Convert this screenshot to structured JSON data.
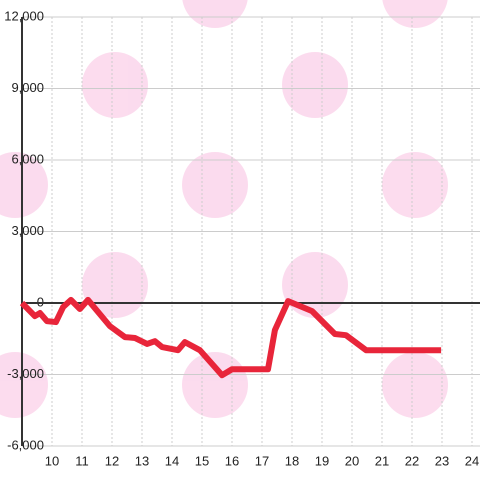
{
  "chart_data": {
    "type": "line",
    "x": [
      9,
      9.43,
      9.6,
      9.83,
      10.13,
      10.37,
      10.63,
      10.93,
      11.2,
      11.93,
      12.43,
      12.77,
      13.17,
      13.43,
      13.67,
      14.2,
      14.43,
      14.93,
      15.67,
      16.0,
      17.2,
      17.43,
      17.87,
      18.17,
      18.67,
      19.43,
      19.8,
      20.47,
      22.97
    ],
    "series": [
      {
        "color": "#e8253a",
        "values": [
          0,
          -550,
          -420,
          -760,
          -800,
          -170,
          130,
          -250,
          130,
          -970,
          -1430,
          -1470,
          -1720,
          -1600,
          -1850,
          -1980,
          -1640,
          -1980,
          -3030,
          -2780,
          -2780,
          -1140,
          80,
          -80,
          -340,
          -1300,
          -1350,
          -1980,
          -1980
        ]
      }
    ],
    "xlim": [
      9,
      24.3
    ],
    "xticks": [
      10,
      11,
      12,
      13,
      14,
      15,
      16,
      17,
      18,
      19,
      20,
      21,
      22,
      23,
      24
    ],
    "ylim": [
      -6000,
      12000
    ],
    "yticks": [
      {
        "value": -6000,
        "label": "-6,000"
      },
      {
        "value": -3000,
        "label": "-3,000"
      },
      0,
      {
        "value": 3000,
        "label": "3,000"
      },
      {
        "value": 6000,
        "label": "6,000"
      },
      {
        "value": 9000,
        "label": "9,000"
      },
      {
        "value": 12000,
        "label": "12,000"
      }
    ],
    "grid": true
  }
}
